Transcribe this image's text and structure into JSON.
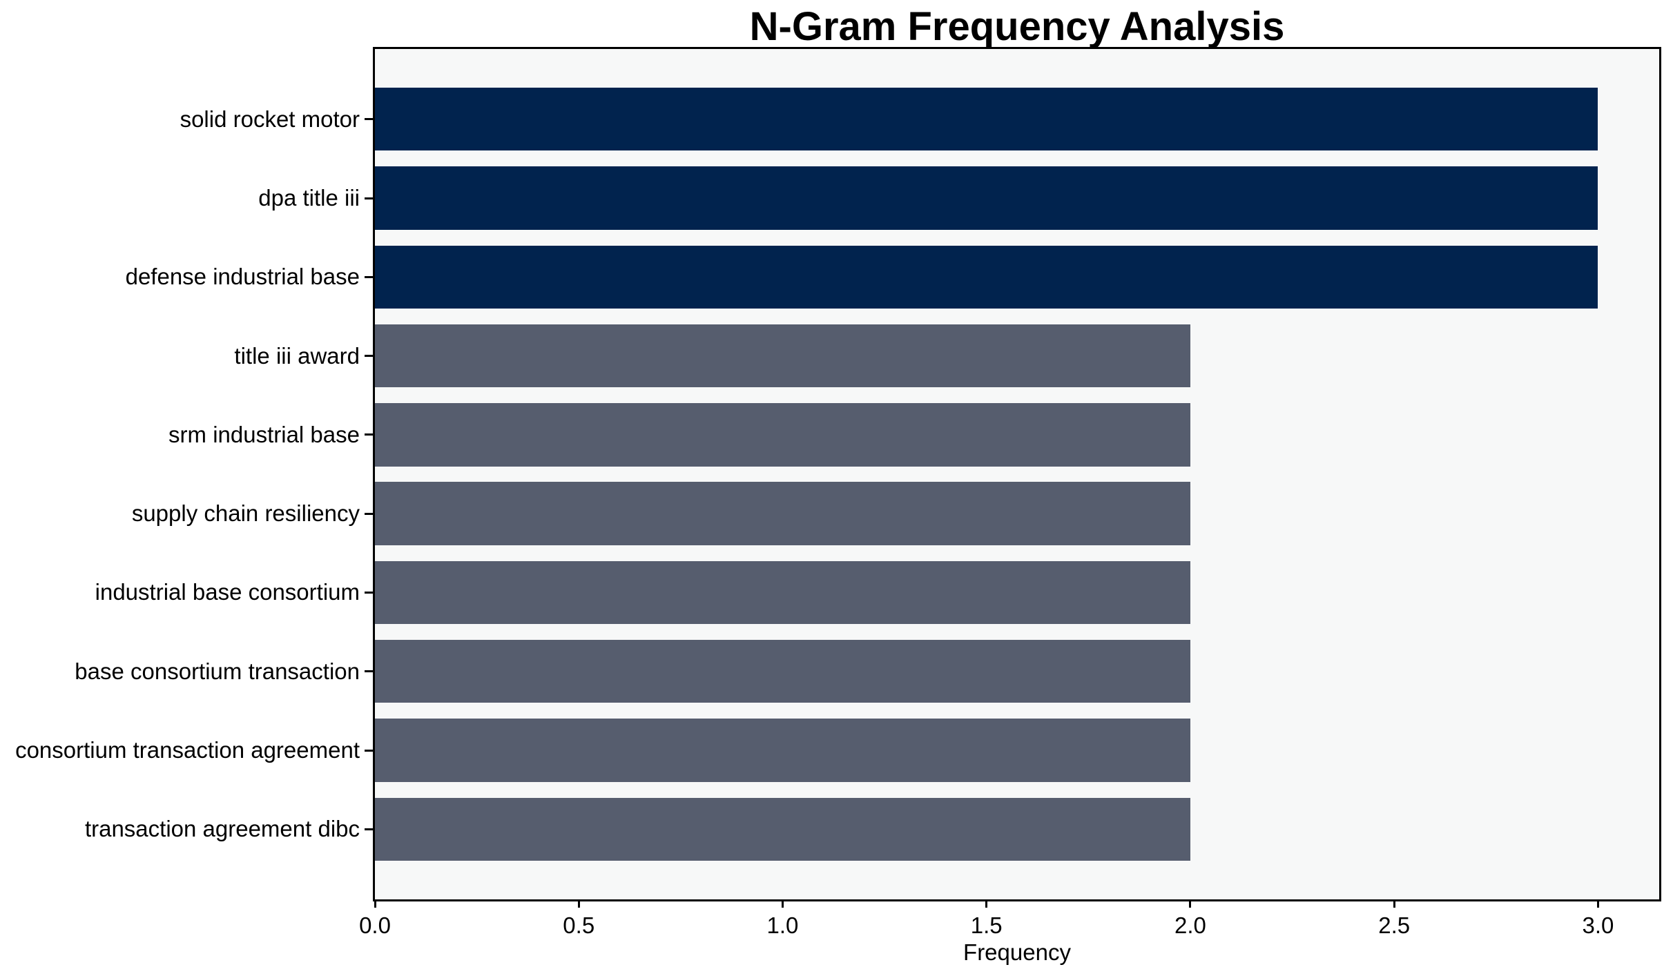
{
  "chart_data": {
    "type": "bar",
    "orientation": "horizontal",
    "title": "N-Gram Frequency Analysis",
    "xlabel": "Frequency",
    "ylabel": "",
    "categories": [
      "solid rocket motor",
      "dpa title iii",
      "defense industrial base",
      "title iii award",
      "srm industrial base",
      "supply chain resiliency",
      "industrial base consortium",
      "base consortium transaction",
      "consortium transaction agreement",
      "transaction agreement dibc"
    ],
    "values": [
      3,
      3,
      3,
      2,
      2,
      2,
      2,
      2,
      2,
      2
    ],
    "bar_colors": [
      "#01234e",
      "#01234e",
      "#01234e",
      "#565d6e",
      "#565d6e",
      "#565d6e",
      "#565d6e",
      "#565d6e",
      "#565d6e",
      "#565d6e"
    ],
    "x_tick_labels": [
      "0.0",
      "0.5",
      "1.0",
      "1.5",
      "2.0",
      "2.5",
      "3.0"
    ],
    "x_tick_values": [
      0,
      0.5,
      1.0,
      1.5,
      2.0,
      2.5,
      3.0
    ],
    "xlim": [
      0,
      3.15
    ],
    "grid": false,
    "legend": null,
    "colors": {
      "bar_high": "#01234e",
      "bar_low": "#565d6e",
      "plot_background": "#f7f8f8",
      "figure_background": "#ffffff",
      "axis": "#000000",
      "text": "#000000"
    }
  }
}
